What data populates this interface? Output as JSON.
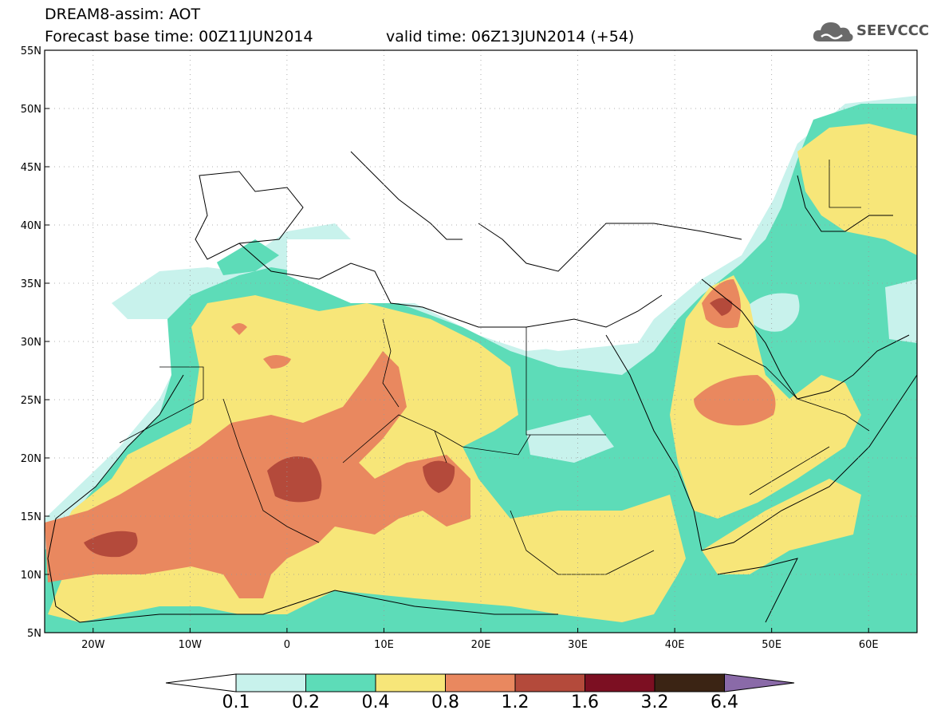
{
  "title": {
    "line1": "DREAM8-assim: AOT",
    "line2": "Forecast base time: 00Z11JUN2014",
    "line3": "valid time: 06Z13JUN2014 (+54)"
  },
  "logo": {
    "text": "SEEVCCC",
    "icon": "cloud-icon"
  },
  "axes": {
    "lat_labels": [
      "55N",
      "50N",
      "45N",
      "40N",
      "35N",
      "30N",
      "25N",
      "20N",
      "15N",
      "10N",
      "5N"
    ],
    "lat_values": [
      55,
      50,
      45,
      40,
      35,
      30,
      25,
      20,
      15,
      10,
      5
    ],
    "lon_labels": [
      "20W",
      "10W",
      "0",
      "10E",
      "20E",
      "30E",
      "40E",
      "50E",
      "60E"
    ],
    "lon_values": [
      -20,
      -10,
      0,
      10,
      20,
      30,
      40,
      50,
      60
    ],
    "lon_range": [
      -25,
      65
    ],
    "lat_range": [
      5,
      55
    ],
    "grid": "dotted"
  },
  "colorbar": {
    "labels": [
      "0.1",
      "0.2",
      "0.4",
      "0.8",
      "1.2",
      "1.6",
      "3.2",
      "6.4"
    ],
    "colors": [
      "#c8f2ec",
      "#5ddcb8",
      "#f7e679",
      "#e9885f",
      "#b44a3b",
      "#7c0f22",
      "#3b2414",
      "#8a6aa8"
    ]
  },
  "fields": {
    "c1": "#c8f2ec",
    "c2": "#5ddcb8",
    "c3": "#f7e679",
    "c4": "#e9885f",
    "c5": "#b44a3b",
    "ocean_white": "#ffffff"
  }
}
